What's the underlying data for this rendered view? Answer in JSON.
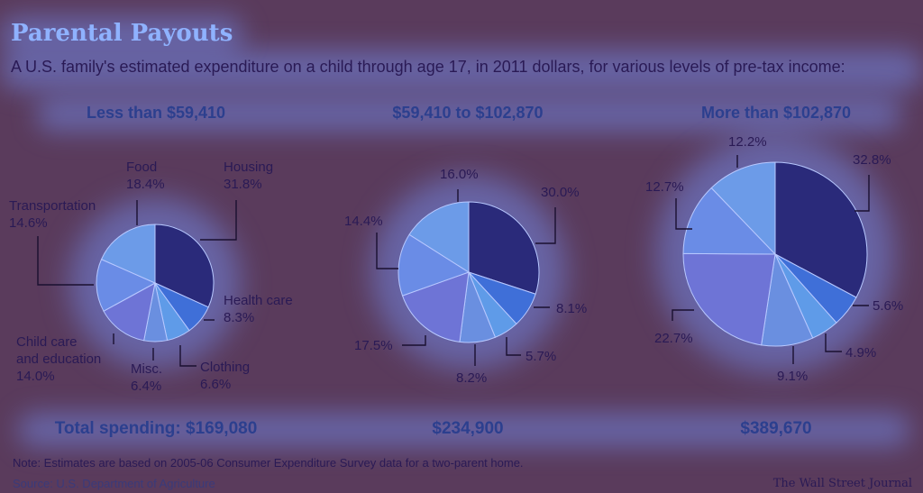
{
  "title": "Parental Payouts",
  "subtitle": "A U.S. family's estimated expenditure on a child through age 17, in 2011 dollars, for various levels of pre-tax income:",
  "note": "Note: Estimates are based on 2005-06 Consumer Expenditure Survey data for a two-parent home.",
  "source": "Source: U.S. Department of Agriculture",
  "credit": "The Wall Street Journal",
  "chart_data": [
    {
      "type": "pie",
      "title": "Less than $59,410",
      "total_label": "Total spending: $169,080",
      "slices": [
        {
          "name": "Housing",
          "value": 31.8,
          "label": "31.8%"
        },
        {
          "name": "Health care",
          "value": 8.3,
          "label": "8.3%"
        },
        {
          "name": "Clothing",
          "value": 6.6,
          "label": "6.6%"
        },
        {
          "name": "Misc.",
          "value": 6.4,
          "label": "6.4%"
        },
        {
          "name": "Child care and education",
          "value": 14.0,
          "label": "14.0%"
        },
        {
          "name": "Transportation",
          "value": 14.6,
          "label": "14.6%"
        },
        {
          "name": "Food",
          "value": 18.4,
          "label": "18.4%"
        }
      ]
    },
    {
      "type": "pie",
      "title": "$59,410 to $102,870",
      "total_label": "$234,900",
      "slices": [
        {
          "name": "Housing",
          "value": 30.0,
          "label": "30.0%"
        },
        {
          "name": "Health care",
          "value": 8.1,
          "label": "8.1%"
        },
        {
          "name": "Clothing",
          "value": 5.7,
          "label": "5.7%"
        },
        {
          "name": "Misc.",
          "value": 8.2,
          "label": "8.2%"
        },
        {
          "name": "Child care and education",
          "value": 17.5,
          "label": "17.5%"
        },
        {
          "name": "Transportation",
          "value": 14.4,
          "label": "14.4%"
        },
        {
          "name": "Food",
          "value": 16.0,
          "label": "16.0%"
        }
      ]
    },
    {
      "type": "pie",
      "title": "More than $102,870",
      "total_label": "$389,670",
      "slices": [
        {
          "name": "Housing",
          "value": 32.8,
          "label": "32.8%"
        },
        {
          "name": "Health care",
          "value": 5.6,
          "label": "5.6%"
        },
        {
          "name": "Clothing",
          "value": 4.9,
          "label": "4.9%"
        },
        {
          "name": "Misc.",
          "value": 9.1,
          "label": "9.1%"
        },
        {
          "name": "Child care and education",
          "value": 22.7,
          "label": "22.7%"
        },
        {
          "name": "Transportation",
          "value": 12.7,
          "label": "12.7%"
        },
        {
          "name": "Food",
          "value": 12.2,
          "label": "12.2%"
        }
      ]
    }
  ],
  "colors": {
    "slices": [
      "#2a2a7a",
      "#3f6fd8",
      "#5f9be8",
      "#6a8fe0",
      "#6e74d6",
      "#6a8ce6",
      "#6c9be8"
    ]
  }
}
